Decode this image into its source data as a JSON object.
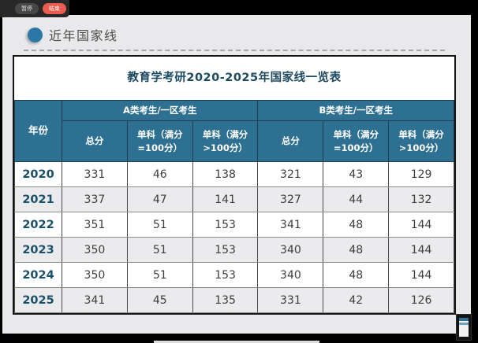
{
  "recorder": {
    "pause_label": "暂停",
    "stop_label": "结束"
  },
  "section": {
    "title": "近年国家线"
  },
  "card": {
    "title": "教育学考研2020-2025年国家线一览表",
    "header": {
      "year": "年份",
      "group_a": "A类考生/一区考生",
      "group_b": "B类考生/一区考生",
      "total": "总分",
      "single_eq_100": "单科（满分=100分）",
      "single_gt_100": "单科（满分>100分）"
    },
    "rows": [
      {
        "year": "2020",
        "a_total": "331",
        "a_100": "46",
        "a_over": "138",
        "b_total": "321",
        "b_100": "43",
        "b_over": "129"
      },
      {
        "year": "2021",
        "a_total": "337",
        "a_100": "47",
        "a_over": "141",
        "b_total": "327",
        "b_100": "44",
        "b_over": "132"
      },
      {
        "year": "2022",
        "a_total": "351",
        "a_100": "51",
        "a_over": "153",
        "b_total": "341",
        "b_100": "48",
        "b_over": "144"
      },
      {
        "year": "2023",
        "a_total": "350",
        "a_100": "51",
        "a_over": "153",
        "b_total": "340",
        "b_100": "48",
        "b_over": "144"
      },
      {
        "year": "2024",
        "a_total": "350",
        "a_100": "51",
        "a_over": "153",
        "b_total": "340",
        "b_100": "48",
        "b_over": "144"
      },
      {
        "year": "2025",
        "a_total": "341",
        "a_100": "45",
        "a_over": "135",
        "b_total": "331",
        "b_100": "42",
        "b_over": "126"
      }
    ]
  },
  "colors": {
    "table_header_bg": "#2e7092",
    "bullet_blue": "#2b77a5",
    "stop_red": "#ea5c50",
    "year_text": "#19506a",
    "title_text": "#1d4a61",
    "page_bg": "#e9e9eb"
  },
  "chart_data": {
    "type": "table",
    "title": "教育学考研2020-2025年国家线一览表",
    "columns": [
      "年份",
      "A类考生/一区考生 总分",
      "A类考生/一区考生 单科（满分=100分）",
      "A类考生/一区考生 单科（满分>100分）",
      "B类考生/一区考生 总分",
      "B类考生/一区考生 单科（满分=100分）",
      "B类考生/一区考生 单科（满分>100分）"
    ],
    "rows": [
      [
        "2020",
        331,
        46,
        138,
        321,
        43,
        129
      ],
      [
        "2021",
        337,
        47,
        141,
        327,
        44,
        132
      ],
      [
        "2022",
        351,
        51,
        153,
        341,
        48,
        144
      ],
      [
        "2023",
        350,
        51,
        153,
        340,
        48,
        144
      ],
      [
        "2024",
        350,
        51,
        153,
        340,
        48,
        144
      ],
      [
        "2025",
        341,
        45,
        135,
        331,
        42,
        126
      ]
    ]
  }
}
